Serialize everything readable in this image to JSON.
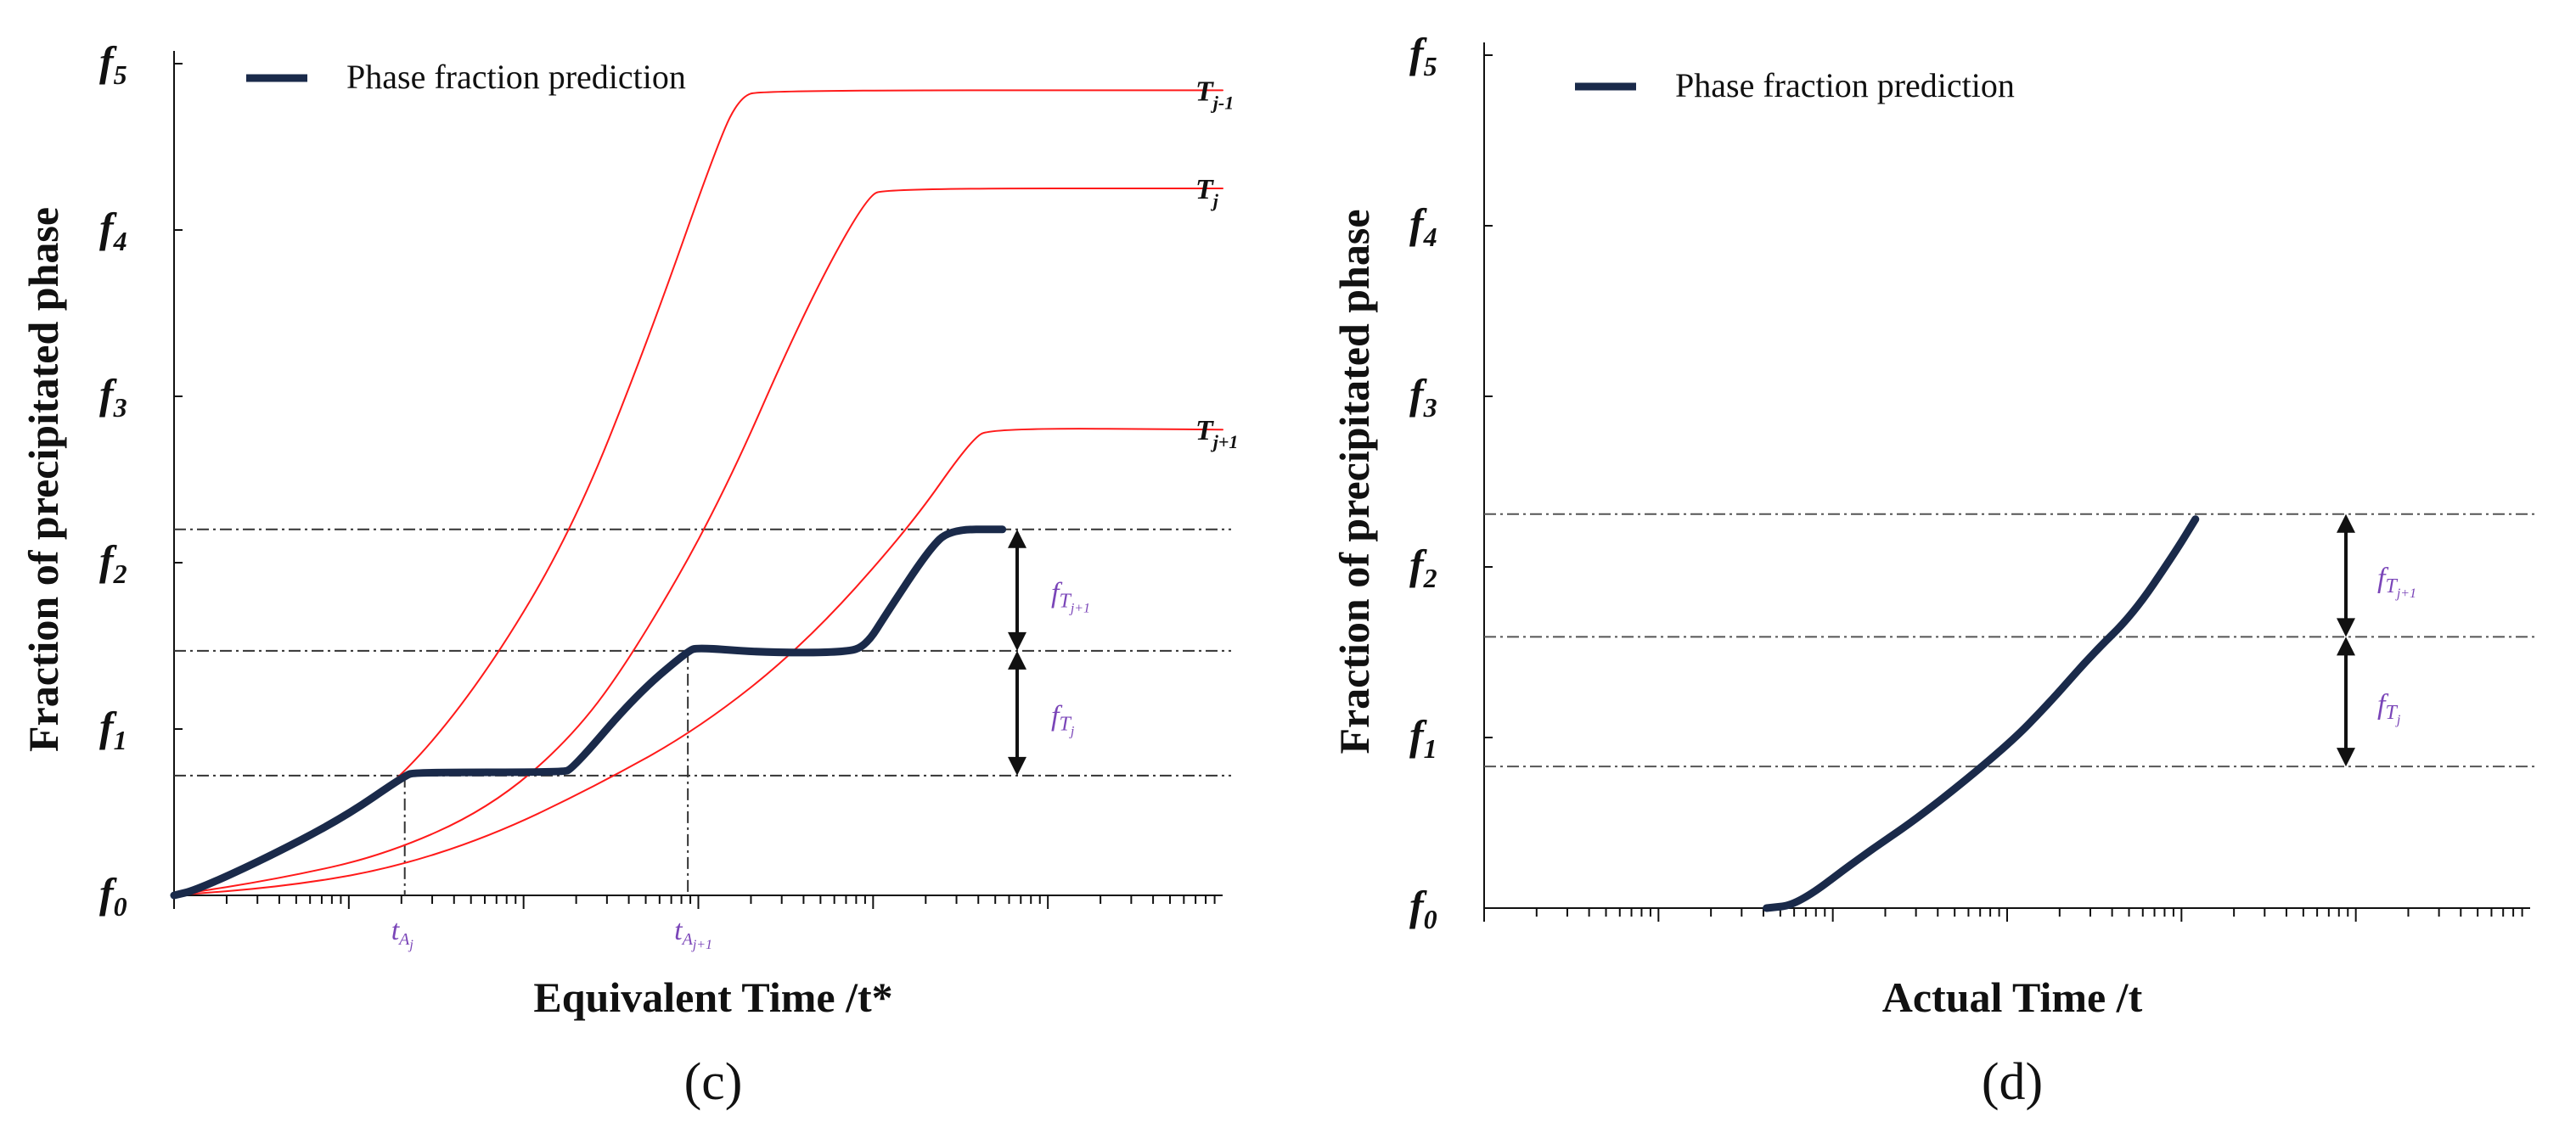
{
  "chart_data": [
    {
      "type": "line",
      "panel_label": "(c)",
      "xlabel": "Equivalent Time /t*",
      "ylabel": "Fraction of precipitated phase",
      "y_ticks": [
        {
          "base": "f",
          "sub": "0",
          "value": 0
        },
        {
          "base": "f",
          "sub": "1",
          "value": 1
        },
        {
          "base": "f",
          "sub": "2",
          "value": 2
        },
        {
          "base": "f",
          "sub": "3",
          "value": 3
        },
        {
          "base": "f",
          "sub": "4",
          "value": 4
        },
        {
          "base": "f",
          "sub": "5",
          "value": 5
        }
      ],
      "xlim": [
        0,
        100
      ],
      "ylim": [
        0,
        5
      ],
      "legend": {
        "label": "Phase fraction prediction",
        "color": "#1a2a4a",
        "position": "top-left"
      },
      "series": [
        {
          "name": "T_j-1",
          "label_base": "T",
          "label_sub": "j-1",
          "color": "#ff1a1a",
          "width": 2,
          "points": [
            [
              0,
              0
            ],
            [
              8,
              0.2
            ],
            [
              16,
              0.46
            ],
            [
              22,
              0.72
            ],
            [
              30,
              1.35
            ],
            [
              38,
              2.2
            ],
            [
              45,
              3.3
            ],
            [
              52,
              4.55
            ],
            [
              54,
              4.8
            ],
            [
              56,
              4.84
            ],
            [
              100,
              4.84
            ]
          ]
        },
        {
          "name": "T_j",
          "label_base": "T",
          "label_sub": "j",
          "color": "#ff1a1a",
          "width": 2,
          "points": [
            [
              0,
              0
            ],
            [
              10,
              0.1
            ],
            [
              20,
              0.24
            ],
            [
              30,
              0.52
            ],
            [
              38,
              0.95
            ],
            [
              44,
              1.47
            ],
            [
              52,
              2.35
            ],
            [
              60,
              3.5
            ],
            [
              66,
              4.2
            ],
            [
              68,
              4.25
            ],
            [
              100,
              4.25
            ]
          ]
        },
        {
          "name": "T_j+1",
          "label_base": "T",
          "label_sub": "j+1",
          "color": "#ff1a1a",
          "width": 2,
          "points": [
            [
              0,
              0
            ],
            [
              10,
              0.05
            ],
            [
              20,
              0.15
            ],
            [
              30,
              0.35
            ],
            [
              40,
              0.65
            ],
            [
              50,
              1.0
            ],
            [
              60,
              1.5
            ],
            [
              70,
              2.2
            ],
            [
              76,
              2.74
            ],
            [
              78,
              2.81
            ],
            [
              100,
              2.8
            ]
          ]
        },
        {
          "name": "Phase fraction prediction",
          "color": "#1a2a4a",
          "width": 9,
          "points": [
            [
              0,
              0
            ],
            [
              2,
              0.03
            ],
            [
              8,
              0.2
            ],
            [
              16,
              0.46
            ],
            [
              22,
              0.72
            ],
            [
              23,
              0.74
            ],
            [
              37,
              0.74
            ],
            [
              38,
              0.76
            ],
            [
              44,
              1.2
            ],
            [
              49,
              1.47
            ],
            [
              50,
              1.49
            ],
            [
              56,
              1.46
            ],
            [
              64,
              1.46
            ],
            [
              66,
              1.5
            ],
            [
              68,
              1.7
            ],
            [
              72,
              2.08
            ],
            [
              74,
              2.2
            ],
            [
              79,
              2.2
            ]
          ]
        }
      ],
      "reference_lines": [
        {
          "y": 0.72,
          "color": "#333333"
        },
        {
          "y": 1.47,
          "color": "#333333"
        },
        {
          "y": 2.2,
          "color": "#333333"
        }
      ],
      "drop_lines": [
        {
          "x": 22,
          "y": 0.72
        },
        {
          "x": 49,
          "y": 1.47
        }
      ],
      "x_annotations": [
        {
          "x": 22,
          "base": "t",
          "sub": "A",
          "subsub": "j"
        },
        {
          "x": 49,
          "base": "t",
          "sub": "A",
          "subsub": "j+1"
        }
      ],
      "range_arrows": [
        {
          "y_from": 0.72,
          "y_to": 1.47,
          "base": "f",
          "sub": "T",
          "subsub": "j"
        },
        {
          "y_from": 1.47,
          "y_to": 2.2,
          "base": "f",
          "sub": "T",
          "subsub": "j+1"
        }
      ],
      "x_ticks": "logarithmic-style minor ticks, unlabeled"
    },
    {
      "type": "line",
      "panel_label": "(d)",
      "xlabel": "Actual Time /t",
      "ylabel": "Fraction of precipitated phase",
      "y_ticks": [
        {
          "base": "f",
          "sub": "0",
          "value": 0
        },
        {
          "base": "f",
          "sub": "1",
          "value": 1
        },
        {
          "base": "f",
          "sub": "2",
          "value": 2
        },
        {
          "base": "f",
          "sub": "3",
          "value": 3
        },
        {
          "base": "f",
          "sub": "4",
          "value": 4
        },
        {
          "base": "f",
          "sub": "5",
          "value": 5
        }
      ],
      "xlim": [
        0,
        100
      ],
      "ylim": [
        0,
        5
      ],
      "legend": {
        "label": "Phase fraction prediction",
        "color": "#1a2a4a",
        "position": "top-left"
      },
      "series": [
        {
          "name": "Phase fraction prediction",
          "color": "#1a2a4a",
          "width": 9,
          "points": [
            [
              27,
              0
            ],
            [
              30,
              0.02
            ],
            [
              36,
              0.3
            ],
            [
              42,
              0.55
            ],
            [
              50,
              0.95
            ],
            [
              54,
              1.2
            ],
            [
              58,
              1.48
            ],
            [
              62,
              1.72
            ],
            [
              66,
              2.08
            ],
            [
              68,
              2.28
            ]
          ]
        }
      ],
      "reference_lines": [
        {
          "y": 0.83,
          "color": "#555555"
        },
        {
          "y": 1.59,
          "color": "#555555"
        },
        {
          "y": 2.31,
          "color": "#555555"
        }
      ],
      "range_arrows": [
        {
          "y_from": 0.83,
          "y_to": 1.59,
          "base": "f",
          "sub": "T",
          "subsub": "j"
        },
        {
          "y_from": 1.59,
          "y_to": 2.31,
          "base": "f",
          "sub": "T",
          "subsub": "j+1"
        }
      ],
      "x_ticks": "logarithmic-style minor ticks, unlabeled"
    }
  ]
}
